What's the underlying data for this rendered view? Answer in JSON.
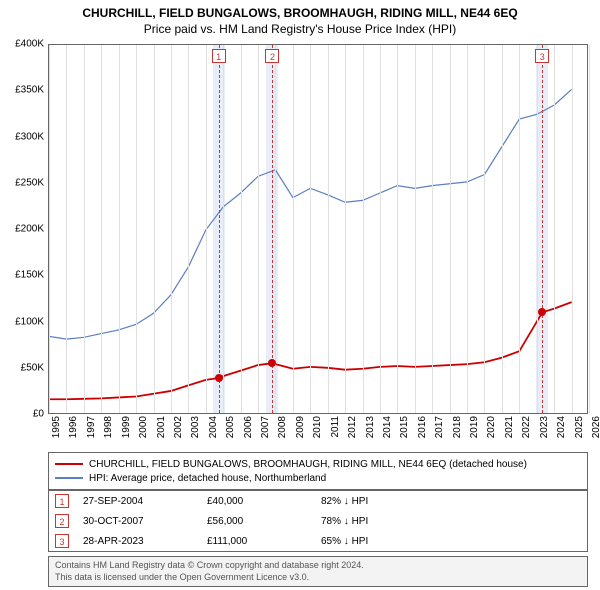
{
  "title": "CHURCHILL, FIELD BUNGALOWS, BROOMHAUGH, RIDING MILL, NE44 6EQ",
  "subtitle": "Price paid vs. HM Land Registry's House Price Index (HPI)",
  "chart": {
    "type": "line",
    "background_color": "#ffffff",
    "grid_color": "#e0e0e0",
    "border_color": "#666666",
    "x_years": [
      1995,
      1996,
      1997,
      1998,
      1999,
      2000,
      2001,
      2002,
      2003,
      2004,
      2005,
      2006,
      2007,
      2008,
      2009,
      2010,
      2011,
      2012,
      2013,
      2014,
      2015,
      2016,
      2017,
      2018,
      2019,
      2020,
      2021,
      2022,
      2023,
      2024,
      2025,
      2026
    ],
    "xlim": [
      1995,
      2026
    ],
    "ylim": [
      0,
      400000
    ],
    "ytick_step": 50000,
    "ytick_labels": [
      "£0",
      "£50K",
      "£100K",
      "£150K",
      "£200K",
      "£250K",
      "£300K",
      "£350K",
      "£400K"
    ],
    "title_fontsize": 12,
    "label_fontsize": 10,
    "series": [
      {
        "name": "HPI: Average price, detached house, Northumberland",
        "color": "#5b7fbf",
        "width": 1.2,
        "points": [
          [
            1995,
            85000
          ],
          [
            1996,
            82000
          ],
          [
            1997,
            84000
          ],
          [
            1998,
            88000
          ],
          [
            1999,
            92000
          ],
          [
            2000,
            98000
          ],
          [
            2001,
            110000
          ],
          [
            2002,
            130000
          ],
          [
            2003,
            160000
          ],
          [
            2004,
            200000
          ],
          [
            2005,
            225000
          ],
          [
            2006,
            240000
          ],
          [
            2007,
            258000
          ],
          [
            2008,
            265000
          ],
          [
            2009,
            235000
          ],
          [
            2010,
            245000
          ],
          [
            2011,
            238000
          ],
          [
            2012,
            230000
          ],
          [
            2013,
            232000
          ],
          [
            2014,
            240000
          ],
          [
            2015,
            248000
          ],
          [
            2016,
            245000
          ],
          [
            2017,
            248000
          ],
          [
            2018,
            250000
          ],
          [
            2019,
            252000
          ],
          [
            2020,
            260000
          ],
          [
            2021,
            290000
          ],
          [
            2022,
            320000
          ],
          [
            2023,
            325000
          ],
          [
            2024,
            335000
          ],
          [
            2025,
            352000
          ]
        ]
      },
      {
        "name": "CHURCHILL, FIELD BUNGALOWS, BROOMHAUGH, RIDING MILL, NE44 6EQ (detached house)",
        "color": "#cc0000",
        "width": 1.8,
        "points": [
          [
            1995,
            17000
          ],
          [
            1996,
            17000
          ],
          [
            1997,
            17500
          ],
          [
            1998,
            18000
          ],
          [
            1999,
            19000
          ],
          [
            2000,
            20000
          ],
          [
            2001,
            23000
          ],
          [
            2002,
            26000
          ],
          [
            2003,
            32000
          ],
          [
            2004,
            38000
          ],
          [
            2004.74,
            40000
          ],
          [
            2005,
            42000
          ],
          [
            2006,
            48000
          ],
          [
            2007,
            54000
          ],
          [
            2007.83,
            56000
          ],
          [
            2008,
            55000
          ],
          [
            2009,
            50000
          ],
          [
            2010,
            52000
          ],
          [
            2011,
            51000
          ],
          [
            2012,
            49000
          ],
          [
            2013,
            50000
          ],
          [
            2014,
            52000
          ],
          [
            2015,
            53000
          ],
          [
            2016,
            52000
          ],
          [
            2017,
            53000
          ],
          [
            2018,
            54000
          ],
          [
            2019,
            55000
          ],
          [
            2020,
            57000
          ],
          [
            2021,
            62000
          ],
          [
            2022,
            69000
          ],
          [
            2023.32,
            111000
          ],
          [
            2024,
            115000
          ],
          [
            2025,
            122000
          ]
        ]
      }
    ],
    "sale_points": [
      {
        "x": 2004.74,
        "y": 40000,
        "color": "#cc0000"
      },
      {
        "x": 2007.83,
        "y": 56000,
        "color": "#cc0000"
      },
      {
        "x": 2023.32,
        "y": 111000,
        "color": "#cc0000"
      }
    ],
    "markers": [
      {
        "id": "1",
        "x": 2004.74,
        "band_color": "#e8edf7",
        "line_color": "#cc3333"
      },
      {
        "id": "2",
        "x": 2007.83,
        "band_color": "#e8edf7",
        "line_color": "#cc3333"
      },
      {
        "id": "3",
        "x": 2023.32,
        "band_color": "#e8edf7",
        "line_color": "#cc3333"
      }
    ]
  },
  "legend": [
    {
      "color": "#cc0000",
      "label": "CHURCHILL, FIELD BUNGALOWS, BROOMHAUGH, RIDING MILL, NE44 6EQ (detached house)"
    },
    {
      "color": "#5b7fbf",
      "label": "HPI: Average price, detached house, Northumberland"
    }
  ],
  "sales": [
    {
      "id": "1",
      "date": "27-SEP-2004",
      "price": "£40,000",
      "diff": "82% ↓ HPI"
    },
    {
      "id": "2",
      "date": "30-OCT-2007",
      "price": "£56,000",
      "diff": "78% ↓ HPI"
    },
    {
      "id": "3",
      "date": "28-APR-2023",
      "price": "£111,000",
      "diff": "65% ↓ HPI"
    }
  ],
  "footer": {
    "line1": "Contains HM Land Registry data © Crown copyright and database right 2024.",
    "line2": "This data is licensed under the Open Government Licence v3.0."
  }
}
